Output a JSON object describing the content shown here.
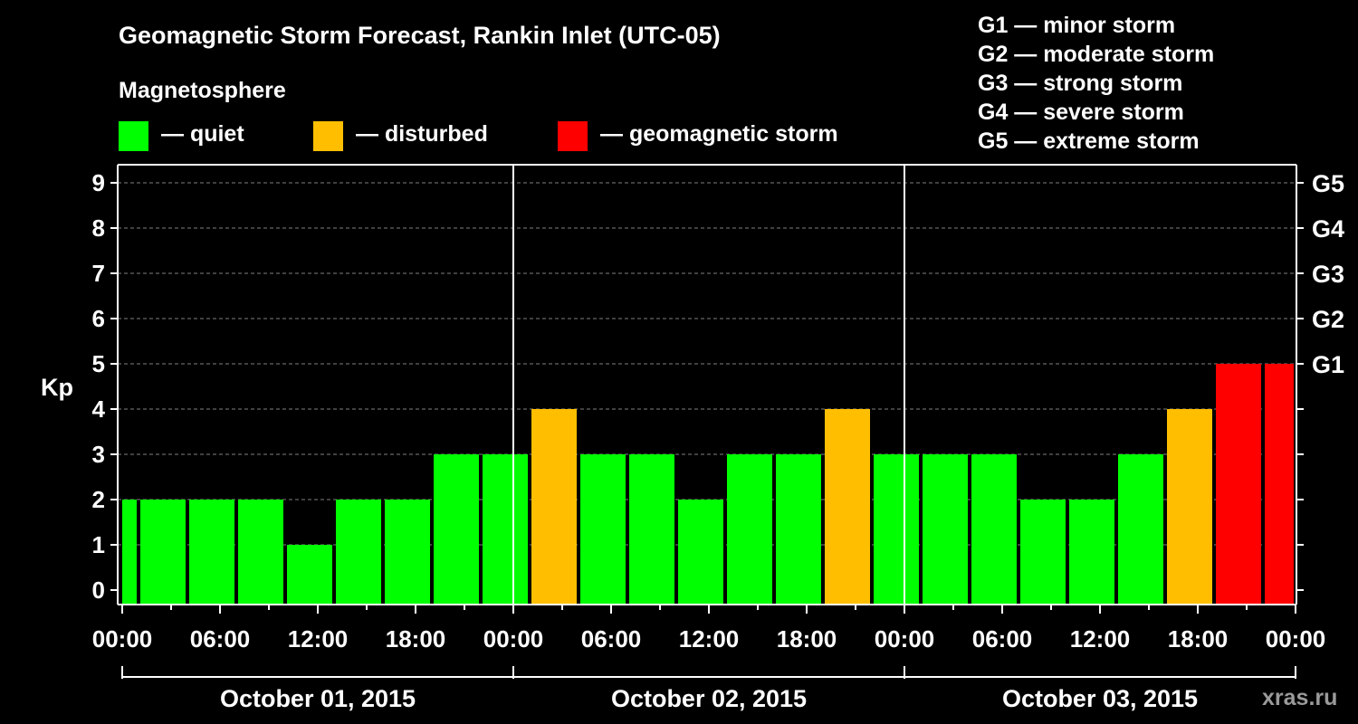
{
  "title": "Geomagnetic Storm Forecast, Rankin Inlet (UTC-05)",
  "magnetosphere_label": "Magnetosphere",
  "legend": [
    {
      "label": "— quiet",
      "color": "#00ff00"
    },
    {
      "label": "— disturbed",
      "color": "#ffbf00"
    },
    {
      "label": "— geomagnetic storm",
      "color": "#ff0000"
    }
  ],
  "storm_scale": [
    "G1 — minor storm",
    "G2 — moderate storm",
    "G3 — strong storm",
    "G4 — severe storm",
    "G5 — extreme storm"
  ],
  "watermark": "xras.ru",
  "chart_data": {
    "type": "bar",
    "ylabel": "Kp",
    "ylim": [
      0,
      9
    ],
    "y_ticks": [
      0,
      1,
      2,
      3,
      4,
      5,
      6,
      7,
      8,
      9
    ],
    "right_ticks": [
      {
        "kp": 5,
        "label": "G1"
      },
      {
        "kp": 6,
        "label": "G2"
      },
      {
        "kp": 7,
        "label": "G3"
      },
      {
        "kp": 8,
        "label": "G4"
      },
      {
        "kp": 9,
        "label": "G5"
      }
    ],
    "x_tick_labels": [
      "00:00",
      "06:00",
      "12:00",
      "18:00",
      "00:00",
      "06:00",
      "12:00",
      "18:00",
      "00:00",
      "06:00",
      "12:00",
      "18:00",
      "00:00"
    ],
    "days": [
      "October 01, 2015",
      "October 02, 2015",
      "October 03, 2015"
    ],
    "grid": "dashed horizontal",
    "colors": {
      "quiet": "#00ff00",
      "disturbed": "#ffbf00",
      "storm": "#ff0000"
    },
    "bars": [
      {
        "start_hour": 0,
        "end_hour": 1,
        "kp": 2
      },
      {
        "start_hour": 1,
        "end_hour": 4,
        "kp": 2
      },
      {
        "start_hour": 4,
        "end_hour": 7,
        "kp": 2
      },
      {
        "start_hour": 7,
        "end_hour": 10,
        "kp": 2
      },
      {
        "start_hour": 10,
        "end_hour": 13,
        "kp": 1
      },
      {
        "start_hour": 13,
        "end_hour": 16,
        "kp": 2
      },
      {
        "start_hour": 16,
        "end_hour": 19,
        "kp": 2
      },
      {
        "start_hour": 19,
        "end_hour": 22,
        "kp": 3
      },
      {
        "start_hour": 22,
        "end_hour": 25,
        "kp": 3
      },
      {
        "start_hour": 25,
        "end_hour": 28,
        "kp": 4
      },
      {
        "start_hour": 28,
        "end_hour": 31,
        "kp": 3
      },
      {
        "start_hour": 31,
        "end_hour": 34,
        "kp": 3
      },
      {
        "start_hour": 34,
        "end_hour": 37,
        "kp": 2
      },
      {
        "start_hour": 37,
        "end_hour": 40,
        "kp": 3
      },
      {
        "start_hour": 40,
        "end_hour": 43,
        "kp": 3
      },
      {
        "start_hour": 43,
        "end_hour": 46,
        "kp": 4
      },
      {
        "start_hour": 46,
        "end_hour": 49,
        "kp": 3
      },
      {
        "start_hour": 49,
        "end_hour": 52,
        "kp": 3
      },
      {
        "start_hour": 52,
        "end_hour": 55,
        "kp": 3
      },
      {
        "start_hour": 55,
        "end_hour": 58,
        "kp": 2
      },
      {
        "start_hour": 58,
        "end_hour": 61,
        "kp": 2
      },
      {
        "start_hour": 61,
        "end_hour": 64,
        "kp": 3
      },
      {
        "start_hour": 64,
        "end_hour": 67,
        "kp": 4
      },
      {
        "start_hour": 67,
        "end_hour": 70,
        "kp": 5
      },
      {
        "start_hour": 70,
        "end_hour": 72,
        "kp": 5
      }
    ]
  }
}
